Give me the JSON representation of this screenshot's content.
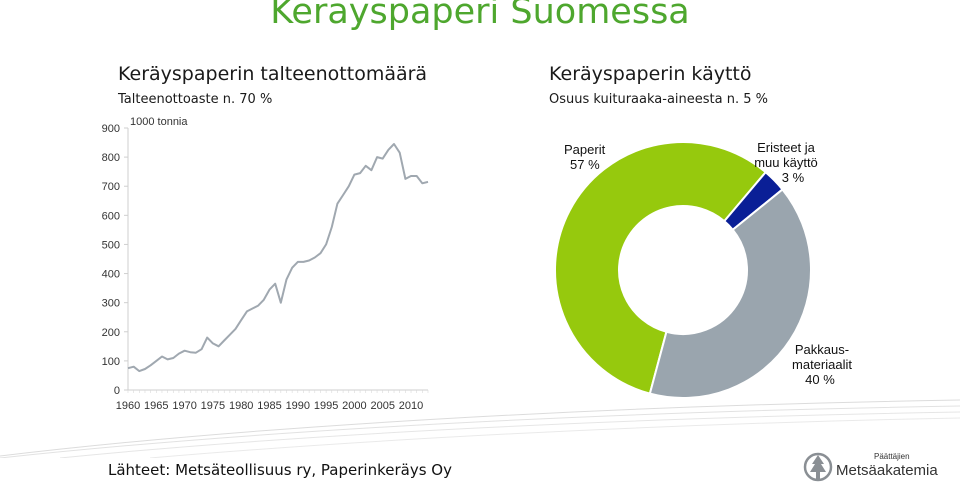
{
  "page": {
    "title": "Keräyspaperi Suomessa",
    "sources": "Lähteet: Metsäteollisuus ry, Paperinkeräys Oy"
  },
  "left_panel": {
    "heading": "Keräyspaperin talteenottomäärä",
    "note": "Talteenottoaste n. 70 %"
  },
  "right_panel": {
    "heading": "Keräyspaperin käyttö",
    "note": "Osuus kuituraaka-aineesta n. 5 %"
  },
  "logo": {
    "tagline": "Päättäjien",
    "name": "Metsäakatemia"
  },
  "colors": {
    "title_green": "#4ea72e",
    "line": "#a0a8b0",
    "paper_green": "#96c90d",
    "insulation_blue": "#0a1f96",
    "packaging_gray": "#9aa5ae"
  },
  "chart_data": [
    {
      "type": "line",
      "unit_label": "1000 tonnia",
      "xlabel": "",
      "ylabel": "",
      "xlim": [
        1960,
        2013
      ],
      "ylim": [
        0,
        900
      ],
      "y_ticks": [
        0,
        100,
        200,
        300,
        400,
        500,
        600,
        700,
        800,
        900
      ],
      "x_ticks": [
        1960,
        1965,
        1970,
        1975,
        1980,
        1985,
        1990,
        1995,
        2000,
        2005,
        2010
      ],
      "grid": false,
      "series": [
        {
          "x": [
            1960,
            1961,
            1962,
            1963,
            1964,
            1965,
            1966,
            1967,
            1968,
            1969,
            1970,
            1971,
            1972,
            1973,
            1974,
            1975,
            1976,
            1977,
            1978,
            1979,
            1980,
            1981,
            1982,
            1983,
            1984,
            1985,
            1986,
            1987,
            1988,
            1989,
            1990,
            1991,
            1992,
            1993,
            1994,
            1995,
            1996,
            1997,
            1998,
            1999,
            2000,
            2001,
            2002,
            2003,
            2004,
            2005,
            2006,
            2007,
            2008,
            2009,
            2010,
            2011,
            2012,
            2013
          ],
          "y": [
            75,
            80,
            65,
            72,
            85,
            100,
            115,
            105,
            110,
            125,
            135,
            130,
            128,
            140,
            180,
            160,
            150,
            170,
            190,
            210,
            240,
            270,
            280,
            290,
            310,
            345,
            365,
            300,
            380,
            420,
            440,
            440,
            445,
            455,
            470,
            500,
            560,
            640,
            670,
            700,
            740,
            745,
            770,
            755,
            800,
            795,
            825,
            845,
            815,
            725,
            735,
            735,
            710,
            715
          ]
        }
      ]
    },
    {
      "type": "pie",
      "donut": true,
      "labels": [
        "Paperit",
        "Eristeet ja muu käyttö",
        "Pakkausmateriaalit"
      ],
      "values": [
        57,
        3,
        40
      ],
      "value_labels": [
        "57 %",
        "3 %",
        "40 %"
      ]
    }
  ]
}
